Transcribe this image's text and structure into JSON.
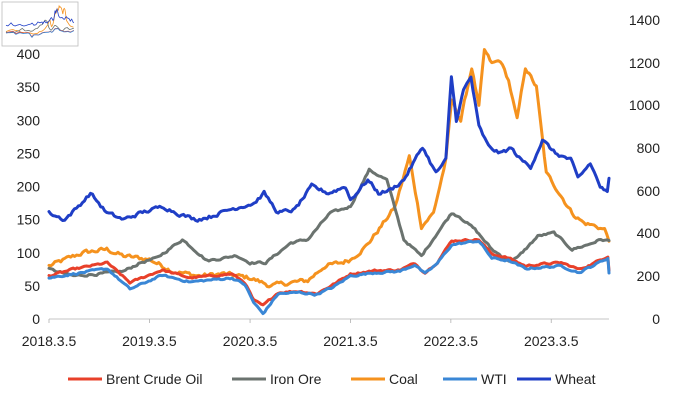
{
  "chart_data": {
    "type": "line",
    "title": "",
    "xlabel": "",
    "ylabel": "",
    "x_ticks": [
      "2018.3.5",
      "2019.3.5",
      "2020.3.5",
      "2021.3.5",
      "2022.3.5",
      "2023.3.5"
    ],
    "y_left": {
      "lim": [
        0,
        400
      ],
      "ticks": [
        0,
        50,
        100,
        150,
        200,
        250,
        300,
        350,
        400
      ]
    },
    "y_right": {
      "lim": [
        0,
        1400
      ],
      "ticks": [
        0,
        200,
        400,
        600,
        800,
        1000,
        1200,
        1400
      ]
    },
    "x_range": [
      "2018-03-05",
      "2023-10-01"
    ],
    "grid": "none",
    "legend_position": "bottom",
    "series": [
      {
        "name": "Brent Crude Oil",
        "axis": "left",
        "color": "#e8402a",
        "x": [
          "2018-03-05",
          "2018-06-01",
          "2018-10-03",
          "2018-12-24",
          "2019-04-20",
          "2019-08-01",
          "2019-12-30",
          "2020-02-15",
          "2020-03-18",
          "2020-04-21",
          "2020-06-15",
          "2020-09-01",
          "2020-11-01",
          "2021-01-01",
          "2021-03-05",
          "2021-06-01",
          "2021-09-01",
          "2021-10-25",
          "2021-12-01",
          "2022-01-15",
          "2022-03-08",
          "2022-06-14",
          "2022-08-01",
          "2022-10-01",
          "2022-12-01",
          "2023-02-01",
          "2023-04-10",
          "2023-06-15",
          "2023-08-01",
          "2023-09-27",
          "2023-10-01"
        ],
        "values": [
          65,
          75,
          85,
          55,
          74,
          62,
          68,
          55,
          28,
          20,
          40,
          42,
          38,
          52,
          68,
          73,
          74,
          84,
          70,
          86,
          118,
          120,
          98,
          92,
          80,
          83,
          85,
          75,
          83,
          95,
          74
        ]
      },
      {
        "name": "Iron Ore",
        "axis": "left",
        "color": "#6b736f",
        "x": [
          "2018-03-05",
          "2018-06-01",
          "2018-09-01",
          "2018-12-01",
          "2019-02-01",
          "2019-04-01",
          "2019-07-03",
          "2019-08-15",
          "2019-10-01",
          "2019-12-01",
          "2020-01-15",
          "2020-03-05",
          "2020-05-01",
          "2020-08-01",
          "2020-10-01",
          "2020-12-21",
          "2021-02-01",
          "2021-03-05",
          "2021-05-12",
          "2021-07-15",
          "2021-08-15",
          "2021-09-15",
          "2021-11-18",
          "2022-01-15",
          "2022-03-08",
          "2022-04-05",
          "2022-06-01",
          "2022-08-01",
          "2022-10-01",
          "2022-11-01",
          "2023-01-15",
          "2023-03-15",
          "2023-05-20",
          "2023-07-15",
          "2023-09-01",
          "2023-10-01"
        ],
        "values": [
          75,
          65,
          68,
          72,
          85,
          92,
          120,
          105,
          88,
          92,
          96,
          85,
          85,
          115,
          120,
          160,
          165,
          170,
          225,
          210,
          165,
          120,
          95,
          130,
          160,
          155,
          135,
          105,
          88,
          92,
          125,
          130,
          105,
          112,
          120,
          118
        ]
      },
      {
        "name": "Coal",
        "axis": "left",
        "color": "#f5921e",
        "x": [
          "2018-03-05",
          "2018-07-05",
          "2018-10-01",
          "2018-12-01",
          "2019-03-05",
          "2019-06-01",
          "2019-09-01",
          "2019-12-01",
          "2020-03-05",
          "2020-05-20",
          "2020-08-01",
          "2020-10-01",
          "2020-12-01",
          "2021-02-01",
          "2021-03-05",
          "2021-05-01",
          "2021-06-25",
          "2021-08-15",
          "2021-10-05",
          "2021-11-18",
          "2022-01-01",
          "2022-02-15",
          "2022-03-08",
          "2022-04-10",
          "2022-05-20",
          "2022-06-15",
          "2022-07-05",
          "2022-08-01",
          "2022-09-01",
          "2022-10-01",
          "2022-11-01",
          "2022-12-01",
          "2023-01-10",
          "2023-02-15",
          "2023-03-20",
          "2023-05-20",
          "2023-07-01",
          "2023-08-15",
          "2023-09-15",
          "2023-10-01"
        ],
        "values": [
          80,
          100,
          105,
          95,
          90,
          72,
          65,
          68,
          62,
          50,
          55,
          58,
          80,
          85,
          90,
          110,
          140,
          170,
          245,
          140,
          160,
          240,
          330,
          300,
          380,
          320,
          405,
          385,
          390,
          360,
          300,
          380,
          350,
          220,
          200,
          160,
          145,
          140,
          135,
          120
        ]
      },
      {
        "name": "WTI",
        "axis": "left",
        "color": "#3a87d6",
        "x": [
          "2018-03-05",
          "2018-06-01",
          "2018-10-03",
          "2018-12-24",
          "2019-04-20",
          "2019-08-01",
          "2019-12-30",
          "2020-02-15",
          "2020-03-18",
          "2020-04-21",
          "2020-06-15",
          "2020-09-01",
          "2020-11-01",
          "2021-01-01",
          "2021-03-05",
          "2021-06-01",
          "2021-09-01",
          "2021-10-25",
          "2021-12-01",
          "2022-01-15",
          "2022-03-08",
          "2022-06-14",
          "2022-08-01",
          "2022-10-01",
          "2022-12-01",
          "2023-02-01",
          "2023-04-10",
          "2023-06-15",
          "2023-08-01",
          "2023-09-27",
          "2023-10-01"
        ],
        "values": [
          62,
          68,
          76,
          45,
          66,
          56,
          62,
          52,
          25,
          8,
          38,
          40,
          37,
          48,
          65,
          70,
          72,
          82,
          68,
          84,
          112,
          118,
          92,
          88,
          76,
          78,
          80,
          70,
          80,
          92,
          70
        ]
      },
      {
        "name": "Wheat",
        "axis": "left",
        "color": "#1f3ec6",
        "x": [
          "2018-03-05",
          "2018-05-01",
          "2018-06-20",
          "2018-08-03",
          "2018-10-01",
          "2018-12-01",
          "2019-02-01",
          "2019-04-25",
          "2019-06-15",
          "2019-08-20",
          "2019-10-15",
          "2019-12-20",
          "2020-02-01",
          "2020-03-20",
          "2020-04-25",
          "2020-06-15",
          "2020-08-15",
          "2020-10-15",
          "2020-12-15",
          "2021-02-15",
          "2021-03-05",
          "2021-05-07",
          "2021-06-15",
          "2021-07-30",
          "2021-09-15",
          "2021-11-22",
          "2022-01-10",
          "2022-02-15",
          "2022-03-07",
          "2022-03-25",
          "2022-04-20",
          "2022-05-17",
          "2022-06-15",
          "2022-07-20",
          "2022-09-01",
          "2022-10-10",
          "2022-11-15",
          "2022-12-20",
          "2023-02-01",
          "2023-03-20",
          "2023-05-15",
          "2023-06-10",
          "2023-07-25",
          "2023-08-30",
          "2023-09-25",
          "2023-10-01"
        ],
        "values": [
          160,
          150,
          170,
          190,
          160,
          150,
          160,
          170,
          160,
          150,
          155,
          165,
          170,
          175,
          190,
          160,
          165,
          200,
          190,
          200,
          180,
          210,
          190,
          195,
          210,
          260,
          220,
          240,
          365,
          300,
          345,
          365,
          290,
          260,
          250,
          258,
          240,
          230,
          270,
          250,
          240,
          212,
          235,
          200,
          190,
          210
        ]
      }
    ]
  }
}
